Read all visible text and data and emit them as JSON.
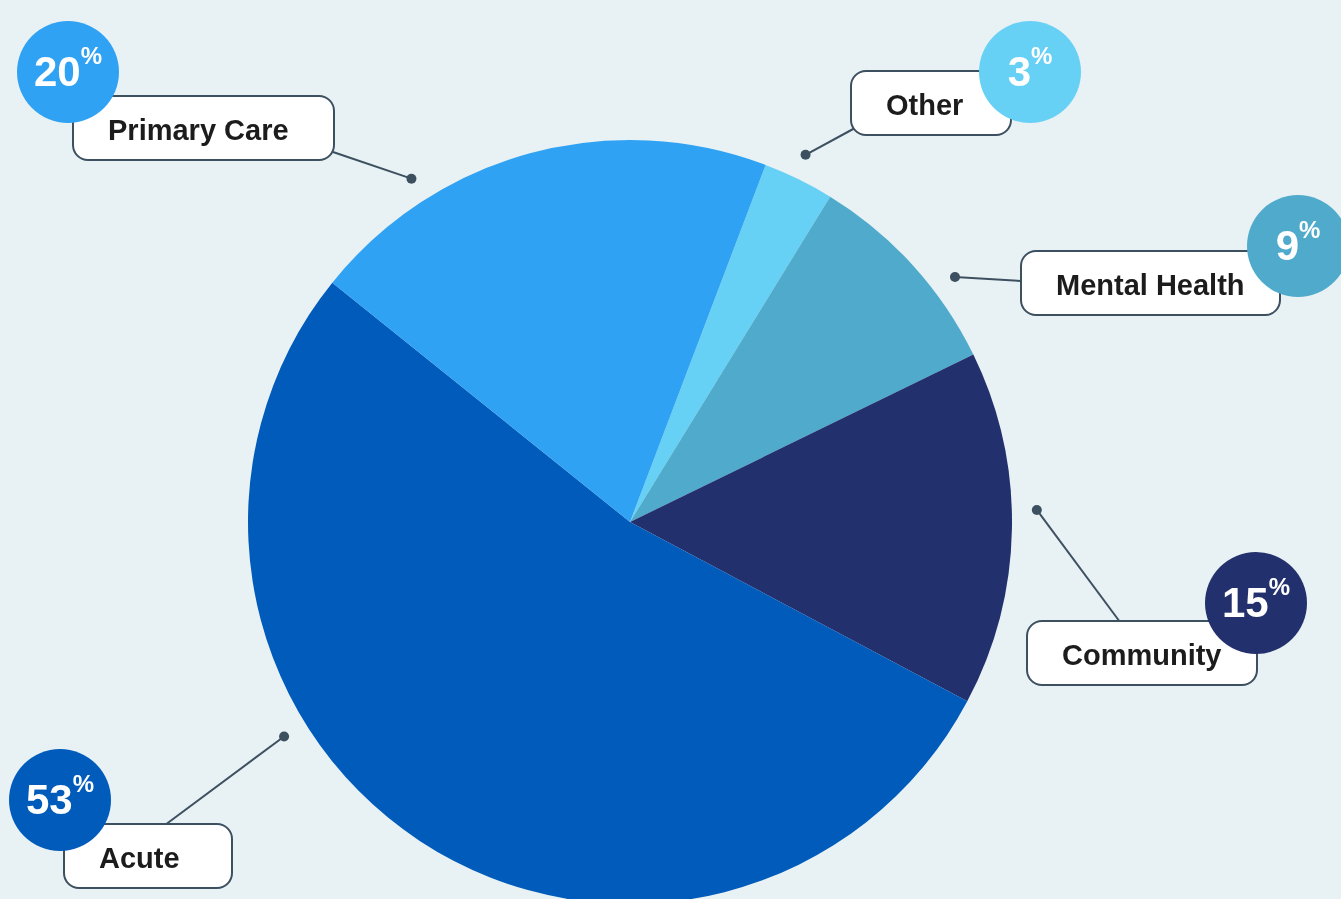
{
  "chart_data": {
    "type": "pie",
    "categories": [
      "Other",
      "Mental Health",
      "Community",
      "Acute",
      "Primary Care"
    ],
    "values": [
      3,
      9,
      15,
      53,
      20
    ],
    "value_labels": [
      "3$^{%}$",
      "9$^{%}$",
      "15$^{%}$",
      "53$^{%}$",
      "20$^{%}$"
    ],
    "colors": [
      "#67d0f5",
      "#4faacb",
      "#22316e",
      "#005bbb",
      "#30a2f4"
    ],
    "legend": false
  }
}
